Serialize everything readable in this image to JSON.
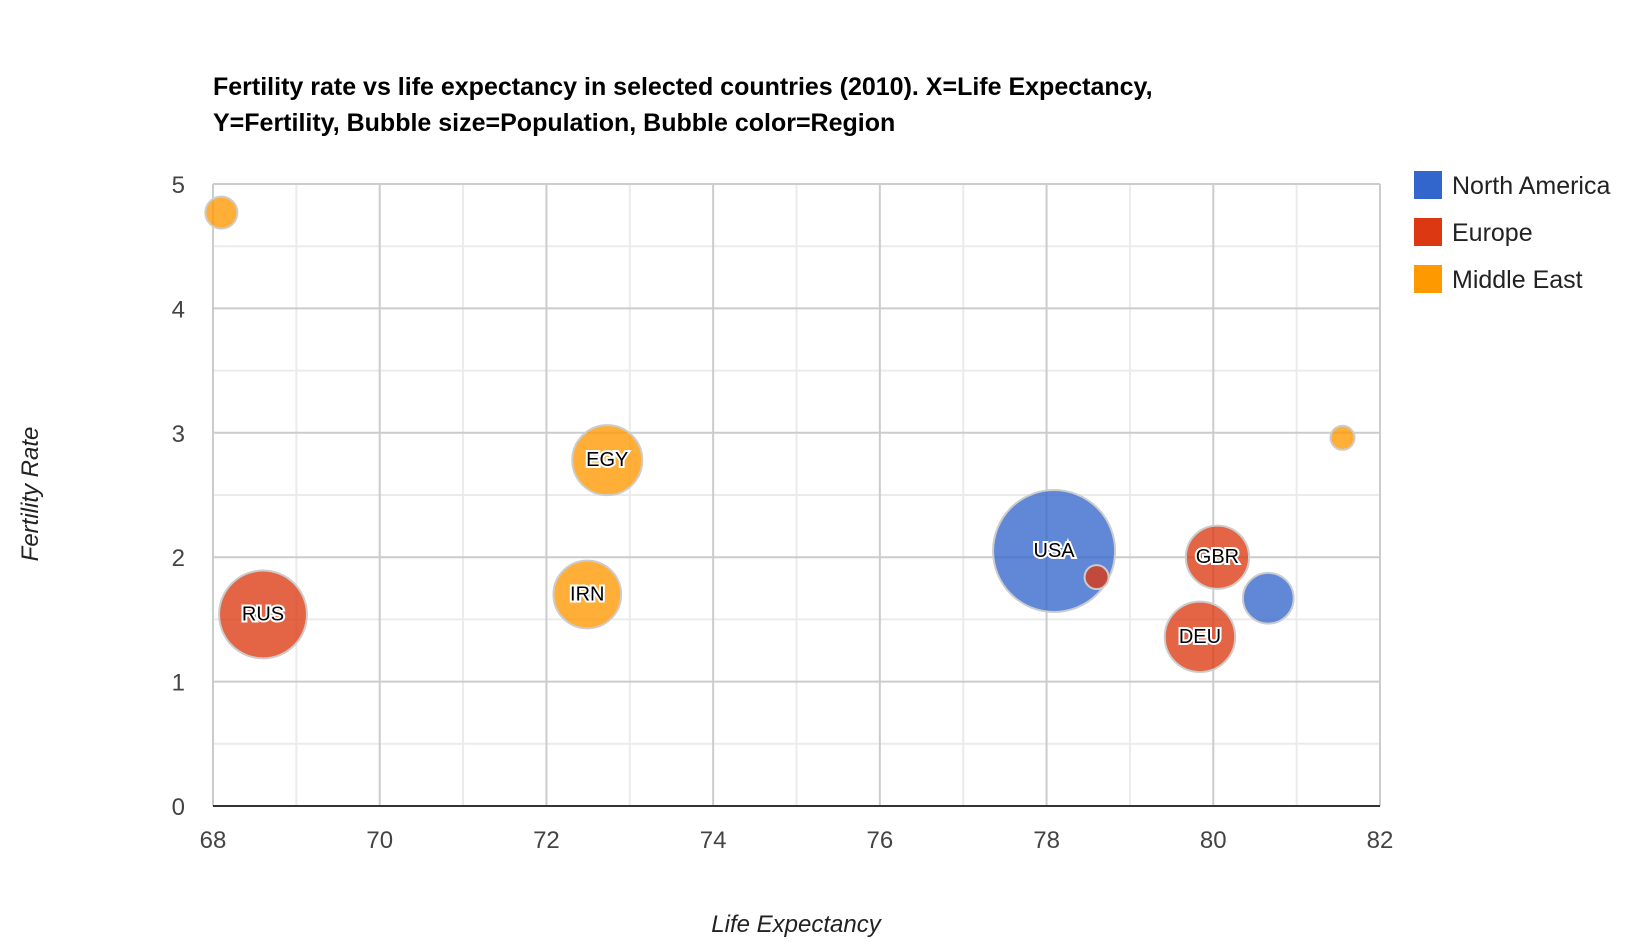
{
  "chart_data": {
    "type": "bubble",
    "title_lines": [
      "Fertility rate vs life expectancy in selected countries (2010). X=Life Expectancy,",
      "Y=Fertility, Bubble size=Population, Bubble color=Region"
    ],
    "xlabel": "Life Expectancy",
    "ylabel": "Fertility Rate",
    "xlim": [
      68,
      82
    ],
    "ylim": [
      0,
      5
    ],
    "x_ticks": [
      "68",
      "70",
      "72",
      "74",
      "76",
      "78",
      "80",
      "82"
    ],
    "y_ticks": [
      "0",
      "1",
      "2",
      "3",
      "4",
      "5"
    ],
    "grid": true,
    "legend_position": "right",
    "series": [
      {
        "name": "North America",
        "color": "#3366cc"
      },
      {
        "name": "Europe",
        "color": "#dc3912"
      },
      {
        "name": "Middle East",
        "color": "#ff9900"
      }
    ],
    "points": [
      {
        "label": "",
        "x": 68.1,
        "y": 4.77,
        "region": "Middle East",
        "population": 7.5
      },
      {
        "label": "RUS",
        "x": 68.6,
        "y": 1.54,
        "region": "Europe",
        "population": 141.9
      },
      {
        "label": "EGY",
        "x": 72.73,
        "y": 2.78,
        "region": "Middle East",
        "population": 80.5
      },
      {
        "label": "IRN",
        "x": 72.49,
        "y": 1.7,
        "region": "Middle East",
        "population": 73.9
      },
      {
        "label": "USA",
        "x": 78.09,
        "y": 2.05,
        "region": "North America",
        "population": 307
      },
      {
        "label": "",
        "x": 78.6,
        "y": 1.84,
        "region": "Europe",
        "population": 2
      },
      {
        "label": "GBR",
        "x": 80.05,
        "y": 2.0,
        "region": "Europe",
        "population": 61.8
      },
      {
        "label": "DEU",
        "x": 79.84,
        "y": 1.36,
        "region": "Europe",
        "population": 81.9
      },
      {
        "label": "",
        "x": 80.66,
        "y": 1.67,
        "region": "North America",
        "population": 33.7
      },
      {
        "label": "",
        "x": 81.55,
        "y": 2.96,
        "region": "Middle East",
        "population": 2
      }
    ]
  }
}
